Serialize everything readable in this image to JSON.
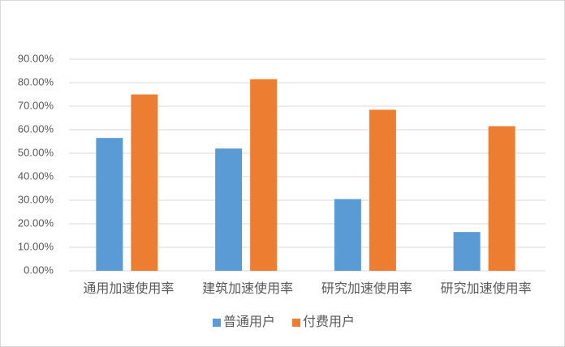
{
  "chart_data": {
    "type": "bar",
    "categories": [
      "通用加速使用率",
      "建筑加速使用率",
      "研究加速使用率",
      "研究加速使用率"
    ],
    "series": [
      {
        "name": "普通用户",
        "color": "#5b9bd5",
        "values": [
          56.5,
          52,
          30.5,
          16.5
        ]
      },
      {
        "name": "付费用户",
        "color": "#ed7d31",
        "values": [
          75,
          81.5,
          68.5,
          61.5
        ]
      }
    ],
    "ylim": [
      0,
      90
    ],
    "yticks": [
      {
        "value": 0,
        "label": "0.00%"
      },
      {
        "value": 10,
        "label": "10.00%"
      },
      {
        "value": 20,
        "label": "20.00%"
      },
      {
        "value": 30,
        "label": "30.00%"
      },
      {
        "value": 40,
        "label": "40.00%"
      },
      {
        "value": 50,
        "label": "50.00%"
      },
      {
        "value": 60,
        "label": "60.00%"
      },
      {
        "value": 70,
        "label": "70.00%"
      },
      {
        "value": 80,
        "label": "80.00%"
      },
      {
        "value": 90,
        "label": "90.00%"
      }
    ],
    "grid": true,
    "legend": "bottom"
  }
}
